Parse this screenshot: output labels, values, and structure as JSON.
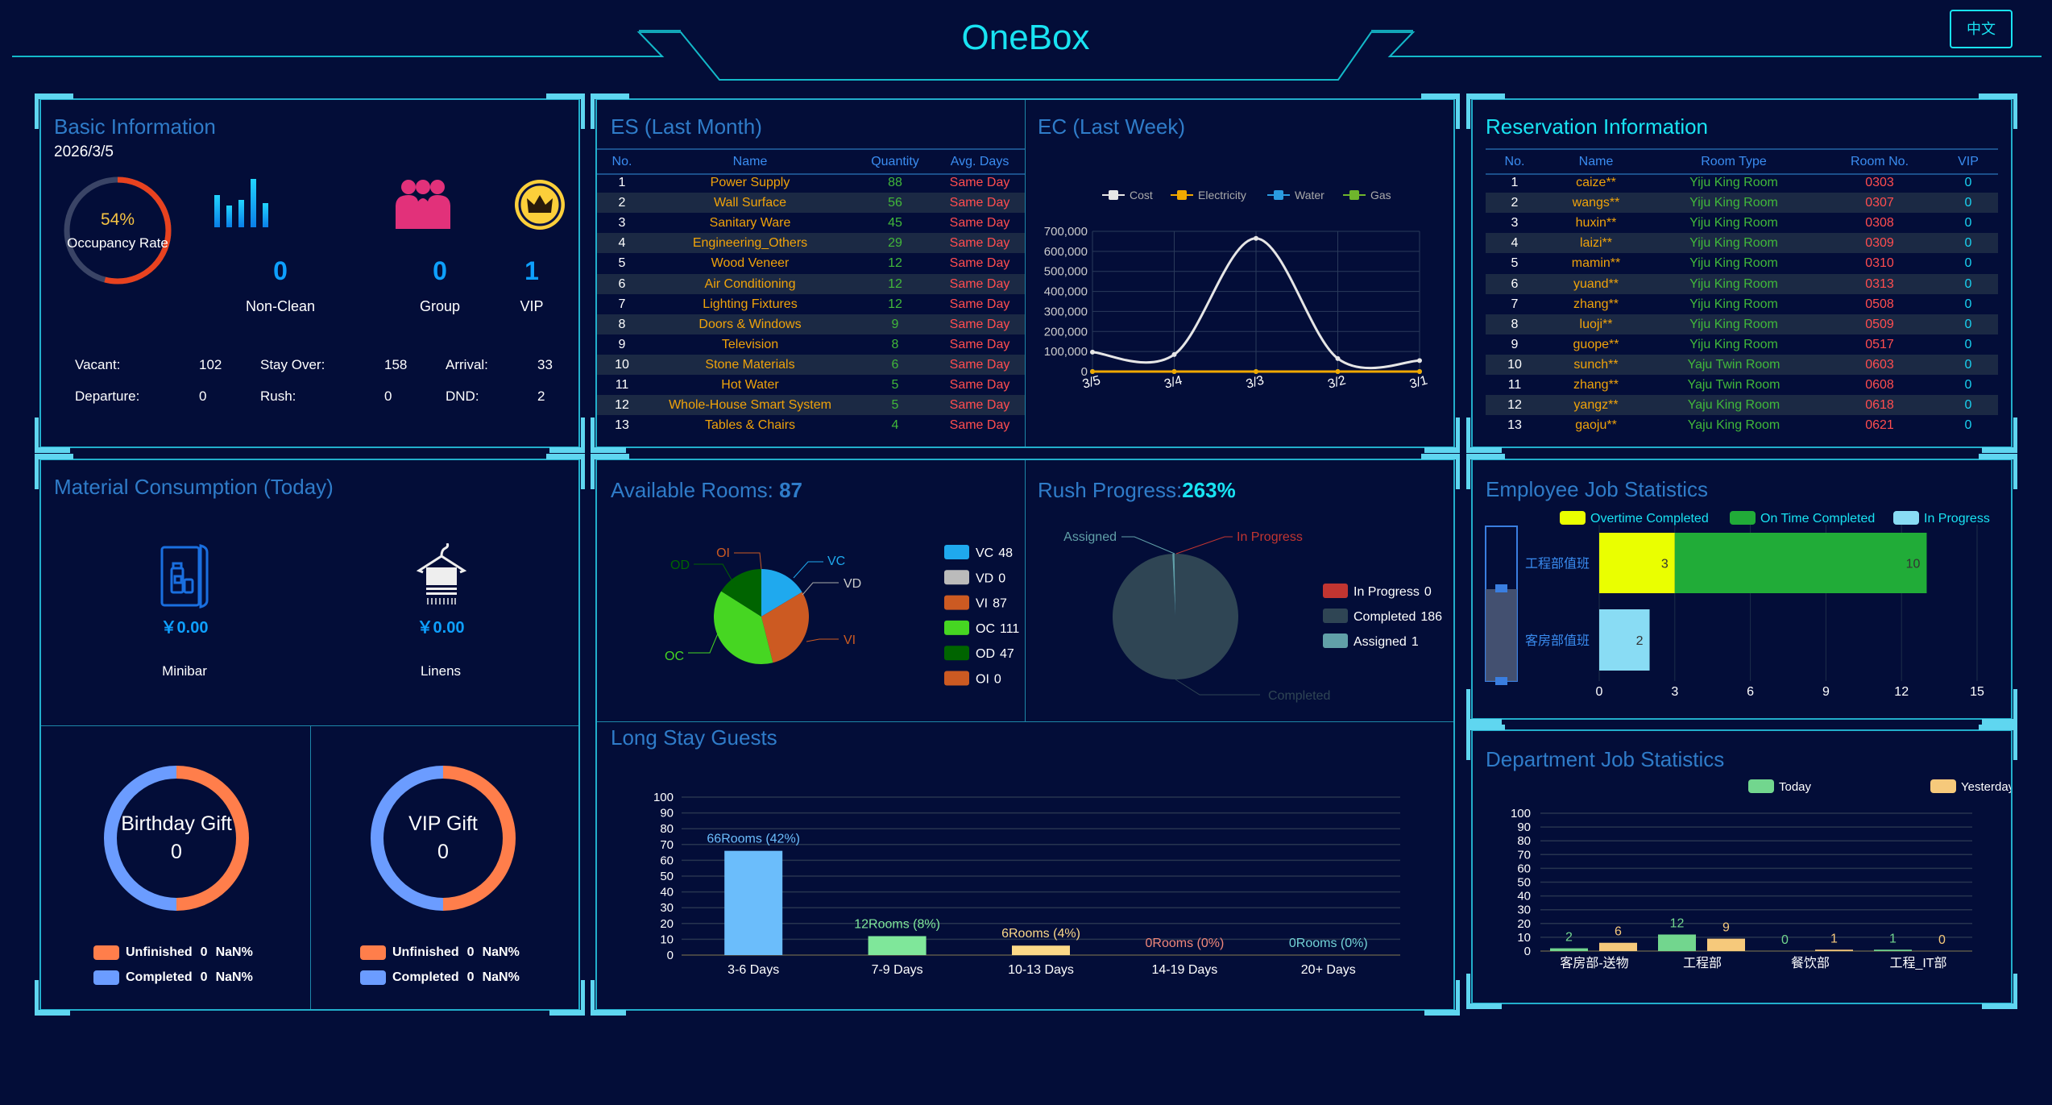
{
  "header": {
    "title": "OneBox",
    "language_button": "中文"
  },
  "colors": {
    "background": "#030d38",
    "frame": "#22aecb",
    "title": "#2f7cc9",
    "accent_cyan": "#19e3f2"
  },
  "basic_info": {
    "title": "Basic Information",
    "date": "2026/3/5",
    "occupancy": {
      "value_label": "54%",
      "label": "Occupancy Rate",
      "fraction": 0.54,
      "color": "#e8421f",
      "track_color": "#3a4466"
    },
    "cards": [
      {
        "icon": "bar-chart-icon",
        "value": "0",
        "label": "Non-Clean"
      },
      {
        "icon": "group-icon",
        "value": "0",
        "label": "Group"
      },
      {
        "icon": "crown-icon",
        "value": "1",
        "label": "VIP"
      }
    ],
    "stats": [
      {
        "label": "Vacant:",
        "value": "102"
      },
      {
        "label": "Stay Over:",
        "value": "158"
      },
      {
        "label": "Arrival:",
        "value": "33"
      },
      {
        "label": "Departure:",
        "value": "0"
      },
      {
        "label": "Rush:",
        "value": "0"
      },
      {
        "label": "DND:",
        "value": "2"
      }
    ]
  },
  "material": {
    "title": "Material Consumption (Today)",
    "items": [
      {
        "icon": "minibar-icon",
        "amount": "￥0.00",
        "label": "Minibar"
      },
      {
        "icon": "linens-hanger-icon",
        "amount": "￥0.00",
        "label": "Linens"
      }
    ],
    "gifts": [
      {
        "title": "Birthday Gift",
        "count": "0",
        "legend": [
          {
            "label": "Unfinished",
            "count": "0",
            "pct": "NaN%",
            "color": "#ff7e4b"
          },
          {
            "label": "Completed",
            "count": "0",
            "pct": "NaN%",
            "color": "#6b9cff"
          }
        ]
      },
      {
        "title": "VIP Gift",
        "count": "0",
        "legend": [
          {
            "label": "Unfinished",
            "count": "0",
            "pct": "NaN%",
            "color": "#ff7e4b"
          },
          {
            "label": "Completed",
            "count": "0",
            "pct": "NaN%",
            "color": "#6b9cff"
          }
        ]
      }
    ]
  },
  "es": {
    "title": "ES (Last Month)",
    "columns": [
      "No.",
      "Name",
      "Quantity",
      "Avg. Days"
    ],
    "rows": [
      [
        "1",
        "Power Supply",
        "88",
        "Same Day"
      ],
      [
        "2",
        "Wall Surface",
        "56",
        "Same Day"
      ],
      [
        "3",
        "Sanitary Ware",
        "45",
        "Same Day"
      ],
      [
        "4",
        "Engineering_Others",
        "29",
        "Same Day"
      ],
      [
        "5",
        "Wood Veneer",
        "12",
        "Same Day"
      ],
      [
        "6",
        "Air Conditioning",
        "12",
        "Same Day"
      ],
      [
        "7",
        "Lighting Fixtures",
        "12",
        "Same Day"
      ],
      [
        "8",
        "Doors & Windows",
        "9",
        "Same Day"
      ],
      [
        "9",
        "Television",
        "8",
        "Same Day"
      ],
      [
        "10",
        "Stone Materials",
        "6",
        "Same Day"
      ],
      [
        "11",
        "Hot Water",
        "5",
        "Same Day"
      ],
      [
        "12",
        "Whole-House Smart System",
        "5",
        "Same Day"
      ],
      [
        "13",
        "Tables & Chairs",
        "4",
        "Same Day"
      ]
    ]
  },
  "reservation": {
    "title": "Reservation Information",
    "columns": [
      "No.",
      "Name",
      "Room Type",
      "Room No.",
      "VIP"
    ],
    "rows": [
      [
        "1",
        "caize**",
        "Yiju King Room",
        "0303",
        "0"
      ],
      [
        "2",
        "wangs**",
        "Yiju King Room",
        "0307",
        "0"
      ],
      [
        "3",
        "huxin**",
        "Yiju King Room",
        "0308",
        "0"
      ],
      [
        "4",
        "laizi**",
        "Yiju King Room",
        "0309",
        "0"
      ],
      [
        "5",
        "mamin**",
        "Yiju King Room",
        "0310",
        "0"
      ],
      [
        "6",
        "yuand**",
        "Yiju King Room",
        "0313",
        "0"
      ],
      [
        "7",
        "zhang**",
        "Yiju King Room",
        "0508",
        "0"
      ],
      [
        "8",
        "luoji**",
        "Yiju King Room",
        "0509",
        "0"
      ],
      [
        "9",
        "guope**",
        "Yiju King Room",
        "0517",
        "0"
      ],
      [
        "10",
        "sunch**",
        "Yaju Twin Room",
        "0603",
        "0"
      ],
      [
        "11",
        "zhang**",
        "Yaju Twin Room",
        "0608",
        "0"
      ],
      [
        "12",
        "yangz**",
        "Yaju King Room",
        "0618",
        "0"
      ],
      [
        "13",
        "gaoju**",
        "Yaju King Room",
        "0621",
        "0"
      ]
    ]
  },
  "available_rooms": {
    "title": "Available Rooms: ",
    "count": "87"
  },
  "rush": {
    "title": "Rush Progress:",
    "value": "263%"
  },
  "long_stay": {
    "title": "Long Stay Guests"
  },
  "employee": {
    "title": "Employee Job Statistics"
  },
  "department": {
    "title": "Department Job Statistics"
  },
  "ec": {
    "title": "EC (Last Week)"
  },
  "chart_data": [
    {
      "id": "ec",
      "type": "line",
      "categories": [
        "3/5",
        "3/4",
        "3/3",
        "3/2",
        "3/1"
      ],
      "series": [
        {
          "name": "Cost",
          "color": "#e6e6e6",
          "values": [
            97000,
            85000,
            665000,
            65000,
            55000
          ]
        },
        {
          "name": "Electricity",
          "color": "#f0a800",
          "values": [
            0,
            0,
            0,
            0,
            0
          ]
        },
        {
          "name": "Water",
          "color": "#2a9be0",
          "values": [
            0,
            0,
            0,
            0,
            0
          ]
        },
        {
          "name": "Gas",
          "color": "#6fb52c",
          "values": [
            0,
            0,
            0,
            0,
            0
          ]
        }
      ],
      "ylim": [
        0,
        700000
      ],
      "yticks": [
        "0",
        "100,000",
        "200,000",
        "300,000",
        "400,000",
        "500,000",
        "600,000",
        "700,000"
      ],
      "legend": "top",
      "grid": true
    },
    {
      "id": "available",
      "type": "pie",
      "slices": [
        {
          "name": "VC",
          "value": 48,
          "color": "#1fa9ee"
        },
        {
          "name": "VD",
          "value": 0,
          "color": "#bbbbbb"
        },
        {
          "name": "VI",
          "value": 87,
          "color": "#cc5a22"
        },
        {
          "name": "OC",
          "value": 111,
          "color": "#46d622"
        },
        {
          "name": "OD",
          "value": 47,
          "color": "#006400"
        },
        {
          "name": "OI",
          "value": 0,
          "color": "#cc5a22"
        }
      ],
      "legend": "right"
    },
    {
      "id": "rush",
      "type": "pie",
      "slices": [
        {
          "name": "In Progress",
          "value": 0,
          "color": "#c23531"
        },
        {
          "name": "Completed",
          "value": 186,
          "color": "#2f4554"
        },
        {
          "name": "Assigned",
          "value": 1,
          "color": "#61a0a8"
        }
      ],
      "legend": "right"
    },
    {
      "id": "long_stay",
      "type": "bar",
      "categories": [
        "3-6 Days",
        "7-9 Days",
        "10-13 Days",
        "14-19 Days",
        "20+ Days"
      ],
      "values": [
        66,
        12,
        6,
        0,
        0
      ],
      "labels": [
        "66Rooms (42%)",
        "12Rooms (8%)",
        "6Rooms (4%)",
        "0Rooms (0%)",
        "0Rooms (0%)"
      ],
      "colors": [
        "#6bbdfb",
        "#7fe79a",
        "#fcd988",
        "#f0877a",
        "#72d2d6"
      ],
      "ylim": [
        0,
        100
      ],
      "yticks": [
        "0",
        "10",
        "20",
        "30",
        "40",
        "50",
        "60",
        "70",
        "80",
        "90",
        "100"
      ],
      "grid": true
    },
    {
      "id": "employee",
      "type": "bar",
      "orientation": "horizontal",
      "stacked": true,
      "categories": [
        "工程部值班",
        "客房部值班"
      ],
      "series": [
        {
          "name": "Overtime Completed",
          "color": "#eaff00",
          "values": [
            3,
            0
          ]
        },
        {
          "name": "On Time Completed",
          "color": "#21ac38",
          "values": [
            10,
            0
          ]
        },
        {
          "name": "In Progress",
          "color": "#89dcf4",
          "values": [
            0,
            2
          ]
        }
      ],
      "xlim": [
        0,
        15
      ],
      "xticks": [
        "0",
        "3",
        "6",
        "9",
        "12",
        "15"
      ],
      "legend": "top"
    },
    {
      "id": "department",
      "type": "bar",
      "categories": [
        "客房部-送物",
        "工程部",
        "餐饮部",
        "工程_IT部"
      ],
      "series": [
        {
          "name": "Today",
          "color": "#72d68e",
          "values": [
            2,
            12,
            0,
            1
          ]
        },
        {
          "name": "Yesterday",
          "color": "#f6c97b",
          "values": [
            6,
            9,
            1,
            0
          ]
        }
      ],
      "ylim": [
        0,
        100
      ],
      "yticks": [
        "0",
        "10",
        "20",
        "30",
        "40",
        "50",
        "60",
        "70",
        "80",
        "90",
        "100"
      ],
      "legend": "top"
    }
  ]
}
